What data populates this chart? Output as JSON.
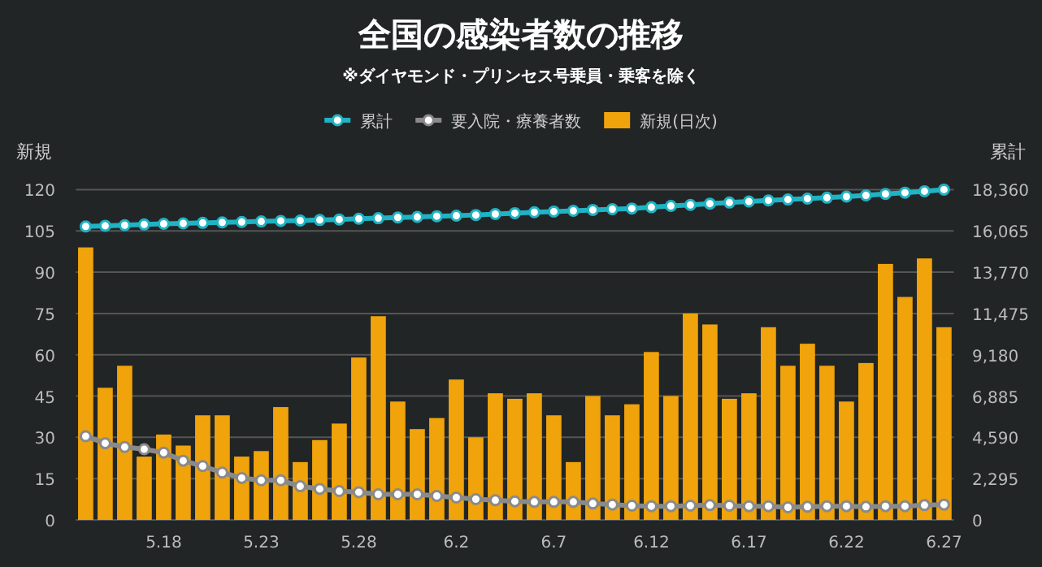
{
  "chart_data": {
    "type": "bar",
    "title": "全国の感染者数の推移",
    "subtitle": "※ダイヤモンド・プリンセス号乗員・乗客を除く",
    "ylabel": "新規",
    "y2label": "累計",
    "categories": [
      null,
      null,
      null,
      null,
      "5.18",
      null,
      null,
      null,
      null,
      "5.23",
      null,
      null,
      null,
      null,
      "5.28",
      null,
      null,
      null,
      null,
      "6.2",
      null,
      null,
      null,
      null,
      "6.7",
      null,
      null,
      null,
      null,
      "6.12",
      null,
      null,
      null,
      null,
      "6.17",
      null,
      null,
      null,
      null,
      "6.22",
      null,
      null,
      null,
      null,
      "6.27"
    ],
    "series": [
      {
        "name": "累計",
        "type": "line",
        "axis": "y2",
        "color": "#1fb3c4",
        "values": [
          16310,
          16350,
          16380,
          16420,
          16460,
          16480,
          16510,
          16540,
          16560,
          16590,
          16620,
          16640,
          16670,
          16700,
          16740,
          16770,
          16810,
          16840,
          16880,
          16910,
          16950,
          17000,
          17050,
          17100,
          17140,
          17180,
          17230,
          17270,
          17310,
          17380,
          17450,
          17510,
          17580,
          17640,
          17700,
          17760,
          17810,
          17860,
          17910,
          17970,
          18040,
          18120,
          18190,
          18270,
          18360
        ]
      },
      {
        "name": "要入院・療養者数",
        "type": "line",
        "axis": "y2",
        "color": "#8a8a8a",
        "values": [
          4650,
          4260,
          4050,
          3930,
          3740,
          3290,
          2990,
          2630,
          2330,
          2200,
          2200,
          1870,
          1720,
          1600,
          1540,
          1420,
          1420,
          1420,
          1330,
          1240,
          1150,
          1090,
          1030,
          1000,
          1000,
          1000,
          910,
          850,
          790,
          760,
          760,
          790,
          820,
          790,
          760,
          760,
          700,
          730,
          760,
          760,
          730,
          760,
          760,
          820,
          850
        ]
      },
      {
        "name": "新規(日次)",
        "axis": "y",
        "color": "#f0a30a",
        "values": [
          99,
          48,
          56,
          23,
          31,
          27,
          38,
          38,
          23,
          25,
          41,
          21,
          29,
          35,
          59,
          74,
          43,
          33,
          37,
          51,
          30,
          46,
          44,
          46,
          38,
          21,
          45,
          38,
          42,
          61,
          45,
          75,
          71,
          44,
          46,
          70,
          56,
          64,
          56,
          43,
          57,
          93,
          81,
          95,
          70
        ]
      }
    ],
    "ylim": [
      0,
      120
    ],
    "yticks": [
      0,
      15,
      30,
      45,
      60,
      75,
      90,
      105,
      120
    ],
    "y2lim": [
      0,
      18360
    ],
    "y2ticks": [
      0,
      {
        "value": 2295,
        "label": "2,295"
      },
      {
        "value": 4590,
        "label": "4,590"
      },
      {
        "value": 6885,
        "label": "6,885"
      },
      {
        "value": 9180,
        "label": "9,180"
      },
      {
        "value": 11475,
        "label": "11,475"
      },
      {
        "value": 13770,
        "label": "13,770"
      },
      {
        "value": 16065,
        "label": "16,065"
      },
      {
        "value": 18360,
        "label": "18,360"
      }
    ],
    "grid": "y",
    "legend": "top",
    "marker": "circle"
  }
}
